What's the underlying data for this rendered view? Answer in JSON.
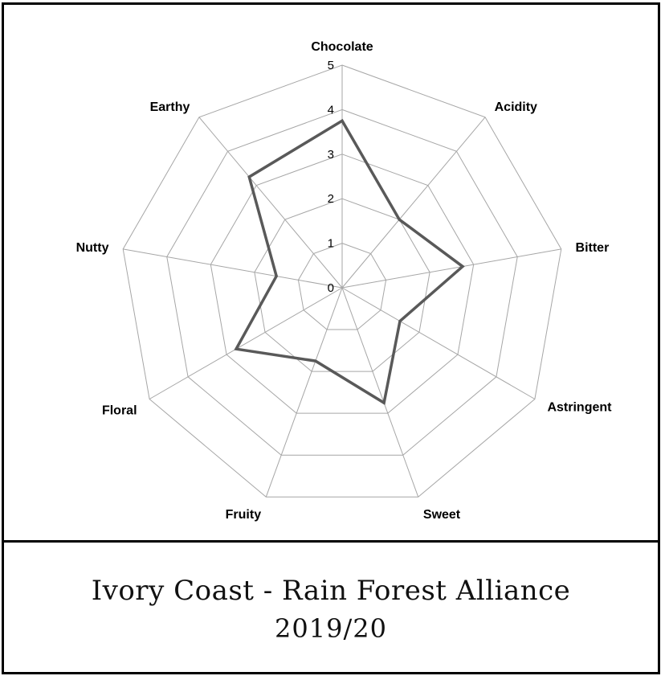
{
  "caption": {
    "line1": "Ivory Coast - Rain Forest Alliance",
    "line2": "2019/20"
  },
  "chart_data": {
    "type": "radar",
    "title": "",
    "categories": [
      "Chocolate",
      "Acidity",
      "Bitter",
      "Astringent",
      "Sweet",
      "Fruity",
      "Floral",
      "Nutty",
      "Earthy"
    ],
    "series": [
      {
        "values": [
          3.75,
          2.0,
          2.75,
          1.5,
          2.75,
          1.75,
          2.75,
          1.5,
          3.25
        ],
        "color": "#595959"
      }
    ],
    "rlim": [
      0,
      5
    ],
    "ticks": [
      "0",
      "1",
      "2",
      "3",
      "4",
      "5"
    ],
    "grid": true,
    "grid_color": "#a6a6a6"
  }
}
